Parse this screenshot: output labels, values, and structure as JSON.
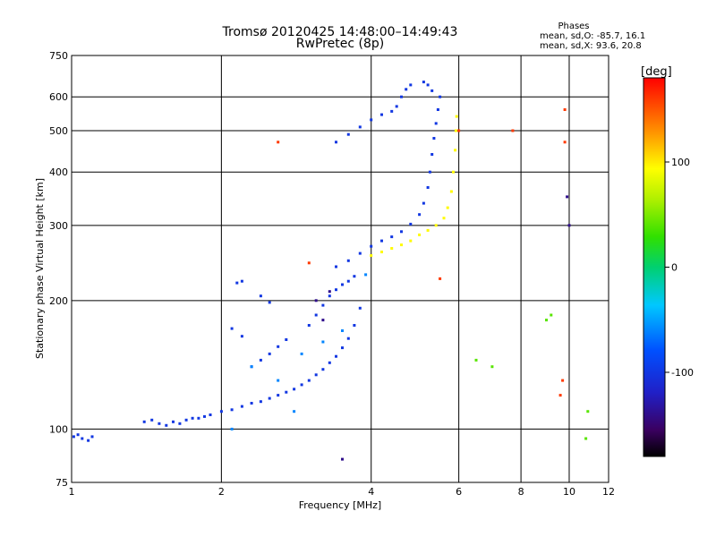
{
  "chart_data": {
    "type": "scatter",
    "title": "Tromsø 20120425 14:48:00–14:49:43",
    "subtitle": "RwPretec (8p)",
    "xlabel": "Frequency [MHz]",
    "ylabel": "Stationary phase Virtual Height [km]",
    "x_scale": "log",
    "y_scale": "log",
    "xlim": [
      1,
      12
    ],
    "ylim": [
      75,
      750
    ],
    "x_ticks": [
      1,
      2,
      4,
      6,
      8,
      10,
      12
    ],
    "x_tick_labels": [
      "1",
      "2",
      "4",
      "6",
      "8",
      "10",
      "12"
    ],
    "y_ticks": [
      75,
      100,
      200,
      300,
      400,
      500,
      600,
      750
    ],
    "y_tick_labels": [
      "75",
      "100",
      "200",
      "300",
      "400",
      "500",
      "600",
      "750"
    ],
    "grid": true,
    "phase_stats": {
      "heading": "Phases",
      "line_o": "mean, sd,O: -85.7, 16.1",
      "line_x": "mean, sd,X:  93.6, 20.8"
    },
    "colorbar": {
      "label": "[deg]",
      "range": [
        -180,
        180
      ],
      "tick_values": [
        100,
        0,
        -100
      ],
      "tick_labels": [
        "100",
        "0",
        "-100"
      ]
    },
    "series": [
      {
        "color_phase": -100,
        "points": [
          [
            1.01,
            96
          ],
          [
            1.03,
            97
          ],
          [
            1.05,
            95
          ],
          [
            1.08,
            94
          ],
          [
            1.1,
            96
          ],
          [
            1.4,
            104
          ],
          [
            1.45,
            105
          ],
          [
            1.5,
            103
          ],
          [
            1.55,
            102
          ],
          [
            1.6,
            104
          ],
          [
            1.65,
            103
          ],
          [
            1.7,
            105
          ],
          [
            1.75,
            106
          ],
          [
            1.8,
            106
          ],
          [
            1.85,
            107
          ],
          [
            1.9,
            108
          ],
          [
            2.0,
            110
          ],
          [
            2.1,
            111
          ],
          [
            2.2,
            113
          ],
          [
            2.3,
            115
          ],
          [
            2.4,
            116
          ],
          [
            2.5,
            118
          ],
          [
            2.6,
            120
          ],
          [
            2.7,
            122
          ],
          [
            2.8,
            124
          ],
          [
            2.9,
            127
          ],
          [
            3.0,
            130
          ],
          [
            3.1,
            134
          ],
          [
            3.2,
            138
          ],
          [
            3.3,
            143
          ],
          [
            3.4,
            148
          ],
          [
            3.5,
            155
          ],
          [
            3.6,
            163
          ],
          [
            3.7,
            175
          ],
          [
            3.8,
            192
          ],
          [
            2.3,
            140
          ],
          [
            2.4,
            145
          ],
          [
            2.5,
            150
          ],
          [
            2.6,
            156
          ],
          [
            2.7,
            162
          ],
          [
            2.2,
            165
          ],
          [
            2.1,
            172
          ],
          [
            2.15,
            220
          ],
          [
            2.2,
            222
          ],
          [
            2.4,
            205
          ],
          [
            2.5,
            198
          ],
          [
            3.0,
            175
          ],
          [
            3.1,
            185
          ],
          [
            3.2,
            195
          ],
          [
            3.3,
            205
          ],
          [
            3.4,
            212
          ],
          [
            3.5,
            218
          ],
          [
            3.6,
            222
          ],
          [
            3.7,
            228
          ],
          [
            3.4,
            240
          ],
          [
            3.6,
            248
          ],
          [
            3.8,
            258
          ],
          [
            4.0,
            268
          ],
          [
            4.2,
            276
          ],
          [
            4.4,
            282
          ],
          [
            4.6,
            290
          ],
          [
            4.8,
            302
          ],
          [
            5.0,
            318
          ],
          [
            5.1,
            338
          ],
          [
            5.2,
            368
          ],
          [
            5.25,
            400
          ],
          [
            5.3,
            440
          ],
          [
            5.35,
            480
          ],
          [
            5.4,
            520
          ],
          [
            5.45,
            560
          ],
          [
            5.5,
            600
          ],
          [
            5.3,
            620
          ],
          [
            5.2,
            640
          ],
          [
            5.1,
            650
          ],
          [
            3.4,
            470
          ],
          [
            3.6,
            490
          ],
          [
            3.8,
            510
          ],
          [
            4.0,
            530
          ],
          [
            4.2,
            545
          ],
          [
            4.4,
            555
          ],
          [
            4.5,
            570
          ],
          [
            4.6,
            600
          ],
          [
            4.7,
            625
          ],
          [
            4.8,
            640
          ]
        ]
      },
      {
        "color_phase": 95,
        "points": [
          [
            4.0,
            255
          ],
          [
            4.2,
            260
          ],
          [
            4.4,
            265
          ],
          [
            4.6,
            270
          ],
          [
            4.8,
            276
          ],
          [
            5.0,
            285
          ],
          [
            5.2,
            292
          ],
          [
            5.4,
            300
          ],
          [
            5.6,
            312
          ],
          [
            5.7,
            330
          ],
          [
            5.8,
            360
          ],
          [
            5.85,
            400
          ],
          [
            5.9,
            450
          ],
          [
            5.92,
            500
          ],
          [
            5.94,
            540
          ]
        ]
      },
      {
        "color_phase": -60,
        "points": [
          [
            2.3,
            140
          ],
          [
            2.6,
            130
          ],
          [
            2.9,
            150
          ],
          [
            3.2,
            160
          ],
          [
            3.5,
            170
          ],
          [
            2.1,
            100
          ],
          [
            2.8,
            110
          ],
          [
            3.9,
            230
          ]
        ]
      },
      {
        "color_phase": 160,
        "points": [
          [
            2.6,
            470
          ],
          [
            3.0,
            245
          ],
          [
            5.5,
            225
          ],
          [
            6.0,
            500
          ],
          [
            7.7,
            500
          ],
          [
            9.8,
            560
          ],
          [
            9.8,
            470
          ],
          [
            9.7,
            130
          ],
          [
            9.6,
            120
          ]
        ]
      },
      {
        "color_phase": 40,
        "points": [
          [
            6.5,
            145
          ],
          [
            7.0,
            140
          ],
          [
            9.0,
            180
          ],
          [
            9.2,
            185
          ],
          [
            10.8,
            95
          ],
          [
            10.9,
            110
          ]
        ]
      },
      {
        "color_phase": -140,
        "points": [
          [
            3.1,
            200
          ],
          [
            3.2,
            180
          ],
          [
            3.3,
            210
          ],
          [
            9.9,
            350
          ],
          [
            10.0,
            300
          ],
          [
            3.5,
            85
          ]
        ]
      }
    ]
  }
}
